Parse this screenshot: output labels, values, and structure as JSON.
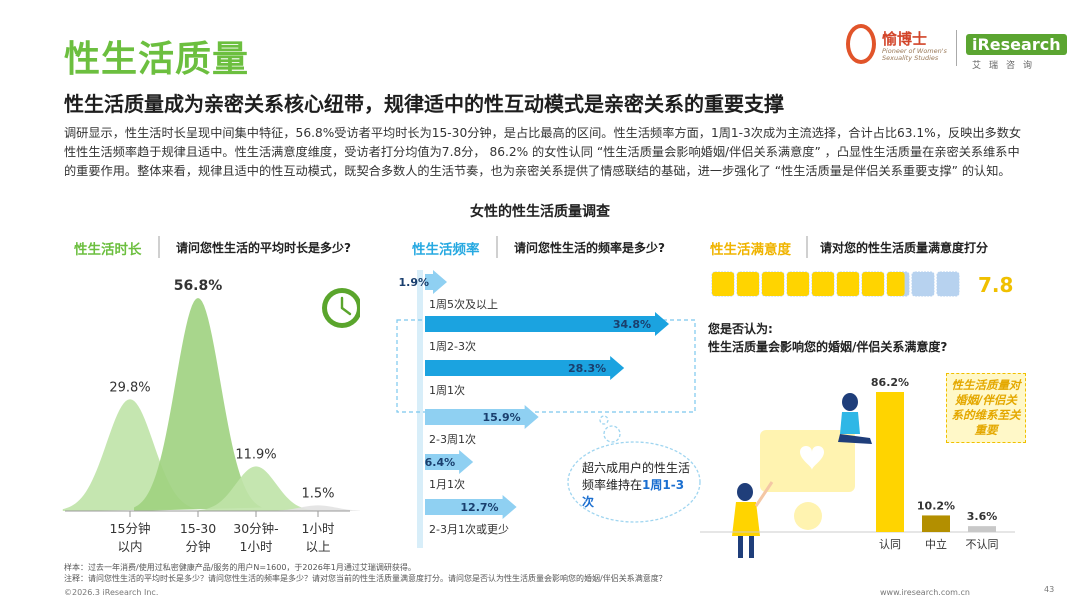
{
  "header": {
    "title": "性生活质量",
    "subtitle": "性生活质量成为亲密关系核心纽带，规律适中的性互动模式是亲密关系的重要支撑",
    "intro": "调研显示，性生活时长呈现中间集中特征，56.8%受访者平均时长为15-30分钟，是占比最高的区间。性生活频率方面，1周1-3次成为主流选择，合计占比63.1%，反映出多数女性性生活频率趋于规律且适中。性生活满意度维度，受访者打分均值为7.8分， 86.2% 的女性认同 “性生活质量会影响婚姻/伴侣关系满意度” ，凸显性生活质量在亲密关系维系中的重要作用。整体来看，规律且适中的性互动模式，既契合多数人的生活节奏，也为亲密关系提供了情感联结的基础，进一步强化了 “性生活质量是伴侣关系重要支撑” 的认知。"
  },
  "logos": {
    "left_name": "愉博士",
    "left_sub": "Pioneer of Women's Sexuality Studies",
    "right_name": "iResearch",
    "right_sub": "艾瑞咨询"
  },
  "survey_title": "女性的性生活质量调查",
  "sections": {
    "duration": {
      "tag": "性生活时长",
      "question": "请问您性生活的平均时长是多少?"
    },
    "frequency": {
      "tag": "性生活频率",
      "question": "请问您性生活的频率是多少?"
    },
    "satisfaction": {
      "tag": "性生活满意度",
      "question": "请对您的性生活质量满意度打分"
    }
  },
  "colors": {
    "green": "#6cbf3f",
    "green_light": "#a9d98b",
    "blue": "#27a9e1",
    "yellow": "#ffd400",
    "olive": "#b38f00",
    "grey": "#bcbcbc"
  },
  "chart_data": [
    {
      "type": "area",
      "title": "请问您性生活的平均时长是多少?",
      "categories": [
        "15分钟\n以内",
        "15-30\n分钟",
        "30分钟-\n1小时",
        "1小时\n以上"
      ],
      "values": [
        29.8,
        56.8,
        11.9,
        1.5
      ],
      "labels": [
        "29.8%",
        "56.8%",
        "11.9%",
        "1.5%"
      ],
      "unit": "%"
    },
    {
      "type": "bar",
      "title": "请问您性生活的频率是多少?",
      "categories": [
        "1周5次及以上",
        "1周2-3次",
        "1周1次",
        "2-3周1次",
        "1月1次",
        "2-3月1次或更少"
      ],
      "values": [
        1.9,
        34.8,
        28.3,
        15.9,
        6.4,
        12.7
      ],
      "labels": [
        "1.9%",
        "34.8%",
        "28.3%",
        "15.9%",
        "6.4%",
        "12.7%"
      ],
      "unit": "%",
      "callout": {
        "text_before": "超六成用户的性生活频率维持在",
        "highlight": "1周1-3次"
      }
    },
    {
      "type": "bar",
      "title": "请对您的性生活质量满意度打分",
      "score": 7.8,
      "score_label": "7.8",
      "max": 10
    },
    {
      "type": "bar",
      "title": "您是否认为: 性生活质量会影响您的婚姻/伴侣关系满意度?",
      "question_line1": "您是否认为:",
      "question_line2": "性生活质量会影响您的婚姻/伴侣关系满意度?",
      "categories": [
        "认同",
        "中立",
        "不认同"
      ],
      "values": [
        86.2,
        10.2,
        3.6
      ],
      "labels": [
        "86.2%",
        "10.2%",
        "3.6%"
      ],
      "unit": "%",
      "side_note": "性生活质量对婚姻/伴侣关系的维系至关重要"
    }
  ],
  "footer": {
    "note_line1": "样本：过去一年消费/使用过私密健康产品/服务的用户N=1600，于2026年1月通过艾瑞调研获得。",
    "note_line2": "注释：请问您性生活的平均时长是多少？请问您性生活的频率是多少？请对您当前的性生活质量满意度打分。请问您是否认为性生活质量会影响您的婚姻/伴侣关系满意度？",
    "copyright": "©2026.3 iResearch Inc.",
    "website": "www.iresearch.com.cn",
    "page": "43"
  }
}
